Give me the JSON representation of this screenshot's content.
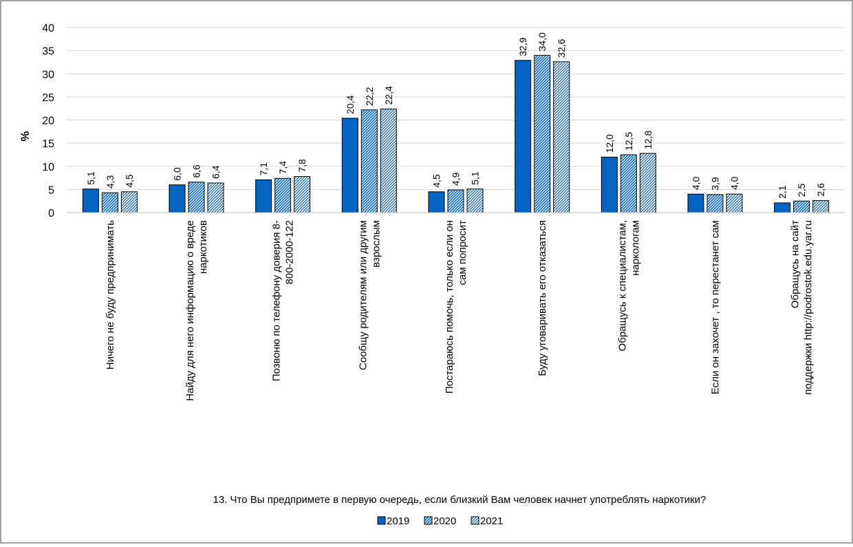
{
  "chart_data": {
    "type": "bar",
    "ylabel": "%",
    "xlabel": "13. Что Вы предпримете в первую очередь, если близкий Вам человек начнет употреблять наркотики?",
    "ylim": [
      0,
      40
    ],
    "yticks": [
      "0",
      "5",
      "10",
      "15",
      "20",
      "25",
      "30",
      "35",
      "40"
    ],
    "grid": true,
    "legend_position": "bottom",
    "categories": [
      "Ничего не буду предпринимать",
      "Найду для него информацию о вреде наркотиков",
      "Позвоню по телефону доверия 8-800-2000-122",
      "Сообщу родителям или другим взрослым",
      "Постараюсь помочь, только если он сам попросит",
      "Буду уговаривать его отказаться",
      "Обращусь к специалистам, наркологам",
      "Если он захочет , то перестанет сам",
      "Обращусь на сайт поддержки http://podrostok.edu.yar.ru"
    ],
    "category_lines": [
      [
        "Ничего не буду предпринимать"
      ],
      [
        "Найду для него информацию о вреде",
        "наркотиков"
      ],
      [
        "Позвоню по телефону доверия 8-",
        "800-2000-122"
      ],
      [
        "Сообщу родителям или другим",
        "взрослым"
      ],
      [
        "Постараюсь помочь, только если он",
        "сам попросит"
      ],
      [
        "Буду уговаривать его отказаться"
      ],
      [
        "Обращусь к специалистам,",
        "наркологам"
      ],
      [
        "Если он захочет , то перестанет сам"
      ],
      [
        "Обращусь на сайт",
        "поддержки http://podrostok.edu.yar.ru"
      ]
    ],
    "series": [
      {
        "name": "2019",
        "pattern": "solid",
        "values": [
          5.1,
          6.0,
          7.1,
          20.4,
          4.5,
          32.9,
          12.0,
          4.0,
          2.1
        ],
        "labels": [
          "5,1",
          "6,0",
          "7,1",
          "20,4",
          "4,5",
          "32,9",
          "12,0",
          "4,0",
          "2,1"
        ]
      },
      {
        "name": "2020",
        "pattern": "dense-hatch",
        "values": [
          4.3,
          6.6,
          7.4,
          22.2,
          4.9,
          34.0,
          12.5,
          3.9,
          2.5
        ],
        "labels": [
          "4,3",
          "6,6",
          "7,4",
          "22,2",
          "4,9",
          "34,0",
          "12,5",
          "3,9",
          "2,5"
        ]
      },
      {
        "name": "2021",
        "pattern": "checker",
        "values": [
          4.5,
          6.4,
          7.8,
          22.4,
          5.1,
          32.6,
          12.8,
          4.0,
          2.6
        ],
        "labels": [
          "4,5",
          "6,4",
          "7,8",
          "22,4",
          "5,1",
          "32,6",
          "12,8",
          "4,0",
          "2,6"
        ]
      }
    ],
    "colors": {
      "primary": "#0563C1",
      "grid": "#D9D9D9",
      "frame": "#808080"
    }
  }
}
